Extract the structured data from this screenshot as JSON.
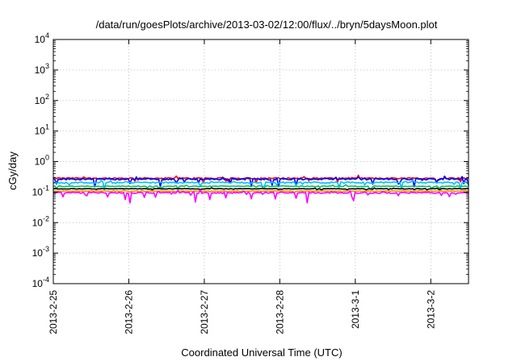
{
  "chart_data": {
    "type": "line",
    "title": "/data/run/goesPlots/archive/2013-03-02/12:00/flux/../bryn/5daysMoon.plot",
    "xlabel": "Coordinated Universal Time (UTC)",
    "ylabel": "cGy/day",
    "yscale": "log",
    "ylim": [
      0.0001,
      10000
    ],
    "y_ticks": [
      {
        "base": "10",
        "exp": "4"
      },
      {
        "base": "10",
        "exp": "3"
      },
      {
        "base": "10",
        "exp": "2"
      },
      {
        "base": "10",
        "exp": "1"
      },
      {
        "base": "10",
        "exp": "0"
      },
      {
        "base": "10",
        "exp": "-1"
      },
      {
        "base": "10",
        "exp": "-2"
      },
      {
        "base": "10",
        "exp": "-3"
      },
      {
        "base": "10",
        "exp": "-4"
      }
    ],
    "xlim": [
      "2013-02-25",
      "2013-03-02T12:00"
    ],
    "x_ticks": [
      "2013-2-25",
      "2013-2-26",
      "2013-2-27",
      "2013-2-28",
      "2013-3-1",
      "2013-3-2"
    ],
    "grid": true,
    "series": [
      {
        "color": "#ff0000",
        "level": 0.285,
        "noise": 0.1,
        "dips": 0.3
      },
      {
        "color": "#0000ff",
        "level": 0.265,
        "noise": 0.12,
        "dips": 0.45
      },
      {
        "color": "#00bfff",
        "level": 0.205,
        "noise": 0.1,
        "dips": 0.4
      },
      {
        "color": "#00c060",
        "level": 0.155,
        "noise": 0.06,
        "dips": 0.2
      },
      {
        "color": "#000000",
        "level": 0.128,
        "noise": 0.04,
        "dips": 0.1
      },
      {
        "color": "#ff8800",
        "level": 0.108,
        "noise": 0.04,
        "dips": 0.1
      },
      {
        "color": "#ff00ff",
        "level": 0.095,
        "noise": 0.1,
        "dips": 0.55
      }
    ]
  }
}
